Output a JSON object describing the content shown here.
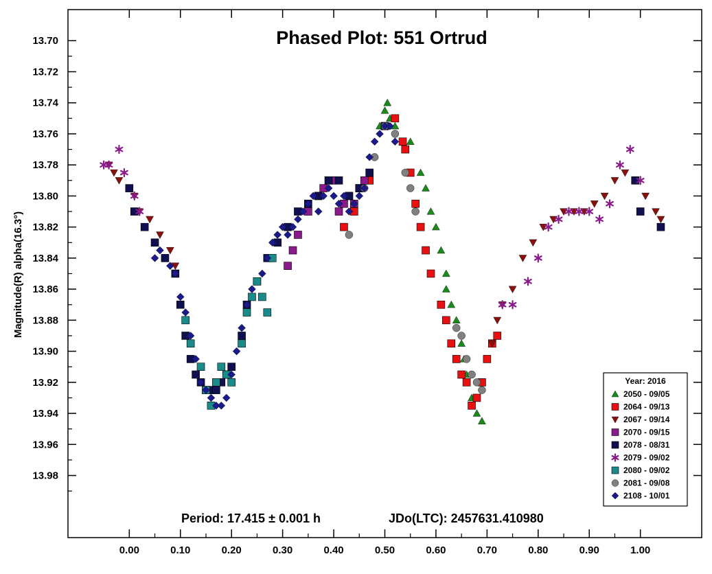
{
  "chart_data": {
    "type": "scatter",
    "title": "Phased Plot: 551 Ortrud",
    "ylabel": "Magnitude(R) alpha(16.3°)",
    "xlabel": "",
    "xlim": [
      -0.12,
      1.12
    ],
    "ylim": [
      14.02,
      13.68
    ],
    "y_inverted": true,
    "x_ticks": [
      "0.00",
      "0.10",
      "0.20",
      "0.30",
      "0.40",
      "0.50",
      "0.60",
      "0.70",
      "0.80",
      "0.90",
      "1.00"
    ],
    "y_ticks": [
      "13.70",
      "13.72",
      "13.74",
      "13.76",
      "13.78",
      "13.80",
      "13.82",
      "13.84",
      "13.86",
      "13.88",
      "13.90",
      "13.92",
      "13.94",
      "13.96",
      "13.98"
    ],
    "footer": {
      "period": "Period: 17.415 ± 0.001 h",
      "epoch": "JDo(LTC): 2457631.410980"
    },
    "legend": {
      "title": "Year: 2016",
      "placement": "bottom-right"
    },
    "series": [
      {
        "name": "2050 - 09/05",
        "marker": "triangle-up",
        "color": "#1a8a1a",
        "x": [
          0.49,
          0.5,
          0.505,
          0.51,
          0.52,
          0.55,
          0.57,
          0.58,
          0.59,
          0.6,
          0.61,
          0.62,
          0.62,
          0.63,
          0.64,
          0.65,
          0.655,
          0.66,
          0.67,
          0.68,
          0.69
        ],
        "y": [
          13.755,
          13.745,
          13.74,
          13.75,
          13.755,
          13.765,
          13.785,
          13.795,
          13.81,
          13.82,
          13.835,
          13.85,
          13.86,
          13.87,
          13.88,
          13.895,
          13.905,
          13.915,
          13.93,
          13.94,
          13.945
        ]
      },
      {
        "name": "2064 - 09/13",
        "marker": "square",
        "color": "#e81010",
        "x": [
          0.42,
          0.44,
          0.47,
          0.5,
          0.52,
          0.535,
          0.54,
          0.55,
          0.56,
          0.57,
          0.58,
          0.59,
          0.61,
          0.62,
          0.63,
          0.64,
          0.65,
          0.66,
          0.67,
          0.68,
          0.69,
          0.7,
          0.71,
          0.72
        ],
        "y": [
          13.82,
          13.81,
          13.79,
          13.755,
          13.75,
          13.765,
          13.77,
          13.785,
          13.805,
          13.82,
          13.835,
          13.85,
          13.87,
          13.88,
          13.895,
          13.905,
          13.915,
          13.92,
          13.935,
          13.93,
          13.92,
          13.905,
          13.895,
          13.89
        ]
      },
      {
        "name": "2067 - 09/14",
        "marker": "triangle-down",
        "color": "#8a1010",
        "x": [
          -0.04,
          -0.03,
          -0.02,
          0.0,
          0.01,
          0.02,
          0.04,
          0.06,
          0.08,
          0.09,
          0.71,
          0.72,
          0.73,
          0.75,
          0.77,
          0.79,
          0.81,
          0.83,
          0.85,
          0.87,
          0.89,
          0.91,
          0.93,
          0.95,
          0.97,
          0.99,
          1.01,
          1.03,
          1.04
        ],
        "y": [
          13.78,
          13.785,
          13.79,
          13.795,
          13.8,
          13.81,
          13.815,
          13.825,
          13.835,
          13.845,
          13.895,
          13.88,
          13.87,
          13.86,
          13.84,
          13.83,
          13.82,
          13.815,
          13.81,
          13.81,
          13.81,
          13.805,
          13.8,
          13.79,
          13.785,
          13.79,
          13.8,
          13.81,
          13.815
        ]
      },
      {
        "name": "2070 - 09/15",
        "marker": "square",
        "color": "#8a1a8a",
        "x": [
          0.31,
          0.32,
          0.33,
          0.35,
          0.37,
          0.38,
          0.39,
          0.4,
          0.41,
          0.42,
          0.43,
          0.44,
          0.45,
          0.46
        ],
        "y": [
          13.845,
          13.835,
          13.825,
          13.81,
          13.8,
          13.795,
          13.79,
          13.79,
          13.81,
          13.805,
          13.8,
          13.805,
          13.795,
          13.79
        ]
      },
      {
        "name": "2078 - 08/31",
        "marker": "square",
        "color": "#101050",
        "x": [
          0.0,
          0.01,
          0.03,
          0.05,
          0.07,
          0.09,
          0.1,
          0.11,
          0.12,
          0.13,
          0.14,
          0.15,
          0.16,
          0.17,
          0.18,
          0.19,
          0.2,
          0.22,
          0.23,
          0.25,
          0.27,
          0.29,
          0.31,
          0.33,
          0.35,
          0.37,
          0.39,
          0.41,
          0.43,
          0.45,
          0.47,
          0.5,
          0.99,
          1.0,
          1.04
        ],
        "y": [
          13.795,
          13.81,
          13.82,
          13.83,
          13.84,
          13.85,
          13.87,
          13.89,
          13.905,
          13.915,
          13.92,
          13.925,
          13.925,
          13.925,
          13.92,
          13.915,
          13.91,
          13.89,
          13.87,
          13.855,
          13.84,
          13.83,
          13.82,
          13.81,
          13.805,
          13.8,
          13.79,
          13.79,
          13.8,
          13.795,
          13.785,
          13.755,
          13.79,
          13.81,
          13.82
        ]
      },
      {
        "name": "2079 - 09/02",
        "marker": "asterisk",
        "color": "#8a1a8a",
        "x": [
          -0.05,
          -0.04,
          -0.02,
          -0.01,
          0.01,
          0.02,
          0.73,
          0.75,
          0.78,
          0.8,
          0.82,
          0.84,
          0.86,
          0.88,
          0.9,
          0.92,
          0.94,
          0.96,
          0.98,
          1.0
        ],
        "y": [
          13.78,
          13.78,
          13.77,
          13.785,
          13.8,
          13.81,
          13.87,
          13.87,
          13.855,
          13.84,
          13.82,
          13.815,
          13.81,
          13.81,
          13.81,
          13.815,
          13.805,
          13.78,
          13.77,
          13.79
        ]
      },
      {
        "name": "2080 - 09/02",
        "marker": "square",
        "color": "#1a8a8a",
        "x": [
          0.11,
          0.12,
          0.14,
          0.15,
          0.16,
          0.17,
          0.18,
          0.19,
          0.2,
          0.22,
          0.23,
          0.24,
          0.25,
          0.26,
          0.27,
          0.28
        ],
        "y": [
          13.88,
          13.895,
          13.91,
          13.925,
          13.935,
          13.92,
          13.91,
          13.915,
          13.92,
          13.895,
          13.875,
          13.865,
          13.855,
          13.865,
          13.875,
          13.84
        ]
      },
      {
        "name": "2081 - 09/08",
        "marker": "circle",
        "color": "#808080",
        "x": [
          0.43,
          0.46,
          0.48,
          0.5,
          0.52,
          0.54,
          0.55,
          0.56,
          0.64,
          0.65,
          0.66,
          0.67,
          0.68,
          0.69
        ],
        "y": [
          13.825,
          13.795,
          13.775,
          13.755,
          13.76,
          13.785,
          13.795,
          13.81,
          13.885,
          13.89,
          13.905,
          13.915,
          13.92,
          13.925
        ]
      },
      {
        "name": "2108 - 10/01",
        "marker": "diamond",
        "color": "#1a1a8a",
        "x": [
          0.05,
          0.06,
          0.08,
          0.09,
          0.1,
          0.11,
          0.12,
          0.13,
          0.14,
          0.15,
          0.16,
          0.17,
          0.18,
          0.19,
          0.2,
          0.21,
          0.22,
          0.23,
          0.24,
          0.26,
          0.27,
          0.28,
          0.29,
          0.3,
          0.31,
          0.32,
          0.33,
          0.34,
          0.35,
          0.36,
          0.37,
          0.38,
          0.39,
          0.4,
          0.41,
          0.42,
          0.43,
          0.44,
          0.45,
          0.46,
          0.47,
          0.48,
          0.49,
          0.5,
          0.51,
          0.52
        ],
        "y": [
          13.84,
          13.835,
          13.845,
          13.85,
          13.865,
          13.875,
          13.89,
          13.905,
          13.92,
          13.925,
          13.93,
          13.935,
          13.935,
          13.93,
          13.915,
          13.9,
          13.885,
          13.87,
          13.86,
          13.85,
          13.84,
          13.83,
          13.825,
          13.82,
          13.825,
          13.82,
          13.815,
          13.81,
          13.805,
          13.8,
          13.81,
          13.8,
          13.795,
          13.8,
          13.805,
          13.8,
          13.81,
          13.805,
          13.8,
          13.795,
          13.775,
          13.765,
          13.76,
          13.755,
          13.755,
          13.765
        ]
      }
    ]
  }
}
